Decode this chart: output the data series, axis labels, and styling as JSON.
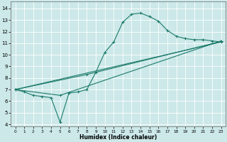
{
  "xlabel": "Humidex (Indice chaleur)",
  "background_color": "#cce8e8",
  "grid_color": "#ffffff",
  "line_color": "#1a7a6a",
  "xlim": [
    -0.5,
    23.5
  ],
  "ylim": [
    3.8,
    14.6
  ],
  "xticks": [
    0,
    1,
    2,
    3,
    4,
    5,
    6,
    7,
    8,
    9,
    10,
    11,
    12,
    13,
    14,
    15,
    16,
    17,
    18,
    19,
    20,
    21,
    22,
    23
  ],
  "yticks": [
    4,
    5,
    6,
    7,
    8,
    9,
    10,
    11,
    12,
    13,
    14
  ],
  "line1_x": [
    0,
    1,
    2,
    3,
    4,
    5,
    6,
    7,
    8,
    9,
    10,
    11,
    12,
    13,
    14,
    15,
    16,
    17,
    18,
    19,
    20,
    21,
    22,
    23
  ],
  "line1_y": [
    7.0,
    6.8,
    6.5,
    6.4,
    6.3,
    4.2,
    6.7,
    6.8,
    7.0,
    8.5,
    10.2,
    11.1,
    12.8,
    13.5,
    13.6,
    13.3,
    12.9,
    12.1,
    11.6,
    11.4,
    11.3,
    11.3,
    11.2,
    11.1
  ],
  "line2_x": [
    0,
    23
  ],
  "line2_y": [
    7.0,
    11.1
  ],
  "line3_x": [
    0,
    5,
    23
  ],
  "line3_y": [
    7.0,
    6.5,
    11.2
  ],
  "line4_x": [
    0,
    8,
    23
  ],
  "line4_y": [
    7.0,
    8.3,
    11.15
  ],
  "figsize": [
    3.2,
    2.0
  ],
  "dpi": 100
}
